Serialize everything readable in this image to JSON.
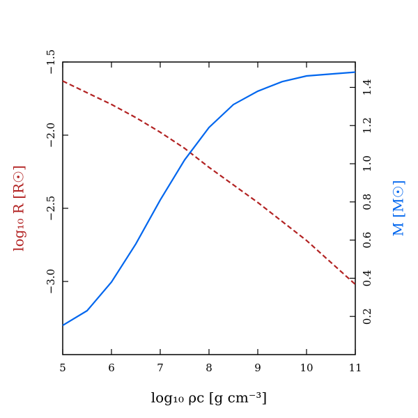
{
  "chart_data": {
    "type": "line",
    "x_label": "log₁₀ ρc [g cm⁻³]",
    "y_label": "log₁₀ R [R☉]",
    "y2_label": "M [M☉]",
    "x": [
      5,
      5.5,
      6,
      6.5,
      7,
      7.5,
      8,
      8.5,
      9,
      9.5,
      10,
      10.5,
      11
    ],
    "series": [
      {
        "name": "log₁₀ R [R☉]",
        "color": "#b22222",
        "dash": true,
        "values": [
          -1.63,
          -1.71,
          -1.79,
          -1.88,
          -1.98,
          -2.09,
          -2.22,
          -2.34,
          -2.46,
          -2.59,
          -2.72,
          -2.87,
          -3.02
        ]
      },
      {
        "name": "M [M☉]",
        "color": "#0066ee",
        "axis": "y2",
        "values": [
          0.153,
          0.23,
          0.38,
          0.58,
          0.81,
          1.02,
          1.19,
          1.31,
          1.38,
          1.43,
          1.46,
          1.47,
          1.48
        ]
      }
    ],
    "xlim": [
      5,
      11
    ],
    "xticks": [
      5,
      6,
      7,
      8,
      9,
      10,
      11
    ],
    "ylim": [
      -3.5,
      -1.5
    ],
    "yticks": [
      {
        "value": -3.0,
        "label": "−3.0"
      },
      {
        "value": -2.5,
        "label": "−2.5"
      },
      {
        "value": -2.0,
        "label": "−2.0"
      },
      {
        "value": -1.5,
        "label": "−1.5"
      }
    ],
    "y2lim": [
      0,
      1.533
    ],
    "y2ticks": [
      0.2,
      0.4,
      0.6,
      0.8,
      {
        "value": 1,
        "label": "1.0"
      },
      1.2,
      1.4
    ]
  }
}
